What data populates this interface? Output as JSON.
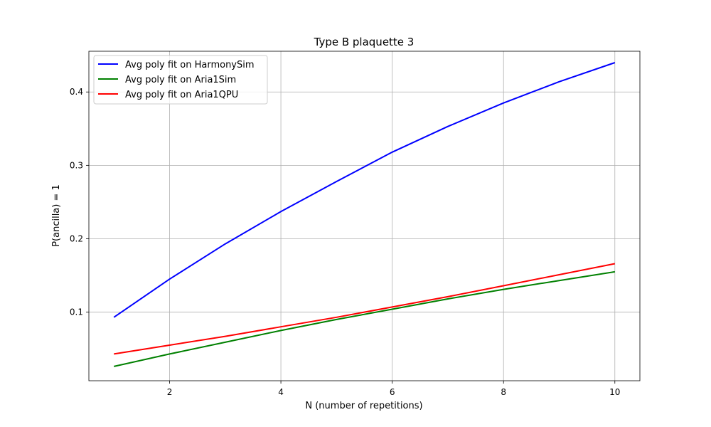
{
  "chart_data": {
    "type": "line",
    "title": "Type B plaquette 3",
    "xlabel": "N (number of repetitions)",
    "ylabel": "P(ancilla) = 1",
    "xlim": [
      0.55,
      10.45
    ],
    "ylim": [
      0.0065,
      0.4555
    ],
    "xticks": [
      2,
      4,
      6,
      8,
      10
    ],
    "yticks": [
      0.1,
      0.2,
      0.3,
      0.4
    ],
    "ytick_labels": [
      "0.1",
      "0.2",
      "0.3",
      "0.4"
    ],
    "grid": true,
    "legend_position": "upper-left",
    "series": [
      {
        "name": "Avg poly fit on HarmonySim",
        "color": "#0000ff",
        "x": [
          1,
          2,
          3,
          4,
          5,
          6,
          7,
          8,
          9,
          10
        ],
        "y": [
          0.093,
          0.145,
          0.193,
          0.237,
          0.278,
          0.318,
          0.353,
          0.385,
          0.414,
          0.44
        ]
      },
      {
        "name": "Avg poly fit on Aria1Sim",
        "color": "#008000",
        "x": [
          1,
          2,
          3,
          4,
          5,
          6,
          7,
          8,
          9,
          10
        ],
        "y": [
          0.026,
          0.043,
          0.059,
          0.075,
          0.09,
          0.104,
          0.118,
          0.131,
          0.143,
          0.155
        ]
      },
      {
        "name": "Avg poly fit on Aria1QPU",
        "color": "#ff0000",
        "x": [
          1,
          2,
          3,
          4,
          5,
          6,
          7,
          8,
          9,
          10
        ],
        "y": [
          0.043,
          0.055,
          0.067,
          0.08,
          0.093,
          0.107,
          0.121,
          0.136,
          0.151,
          0.166
        ]
      }
    ]
  }
}
